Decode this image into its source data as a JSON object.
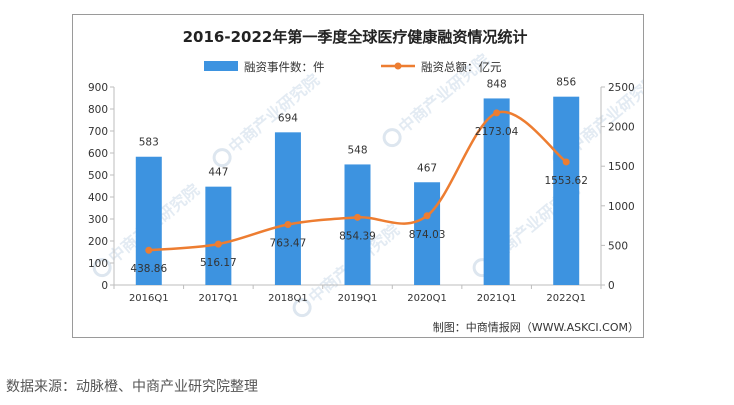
{
  "chart_data": {
    "type": "bar",
    "title": "2016-2022年第一季度全球医疗健康融资情况统计",
    "categories": [
      "2016Q1",
      "2017Q1",
      "2018Q1",
      "2019Q1",
      "2020Q1",
      "2021Q1",
      "2022Q1"
    ],
    "series": [
      {
        "name": "融资事件数：件",
        "type": "bar",
        "axis": "left",
        "color": "#3d93e0",
        "values": [
          583,
          447,
          694,
          548,
          467,
          848,
          856
        ],
        "labels": [
          "583",
          "447",
          "694",
          "548",
          "467",
          "848",
          "856"
        ]
      },
      {
        "name": "融资总额：亿元",
        "type": "line",
        "axis": "right",
        "color": "#ed7d31",
        "values": [
          438.86,
          516.17,
          763.47,
          854.39,
          874.03,
          2173.04,
          1553.62
        ],
        "labels": [
          "438.86",
          "516.17",
          "763.47",
          "854.39",
          "874.03",
          "2173.04",
          "1553.62"
        ]
      }
    ],
    "left_axis": {
      "ylim": [
        0,
        900
      ],
      "ticks": [
        "0",
        "100",
        "200",
        "300",
        "400",
        "500",
        "600",
        "700",
        "800",
        "900"
      ]
    },
    "right_axis": {
      "ylim": [
        0,
        2500
      ],
      "ticks": [
        "0",
        "500",
        "1000",
        "1500",
        "2000",
        "2500"
      ]
    },
    "grid": false,
    "legend_position": "top-center",
    "credit": "制图：中商情报网（WWW.ASKCI.COM）",
    "watermark": "中商产业研究院"
  },
  "source_note": "数据来源：动脉橙、中商产业研究院整理"
}
